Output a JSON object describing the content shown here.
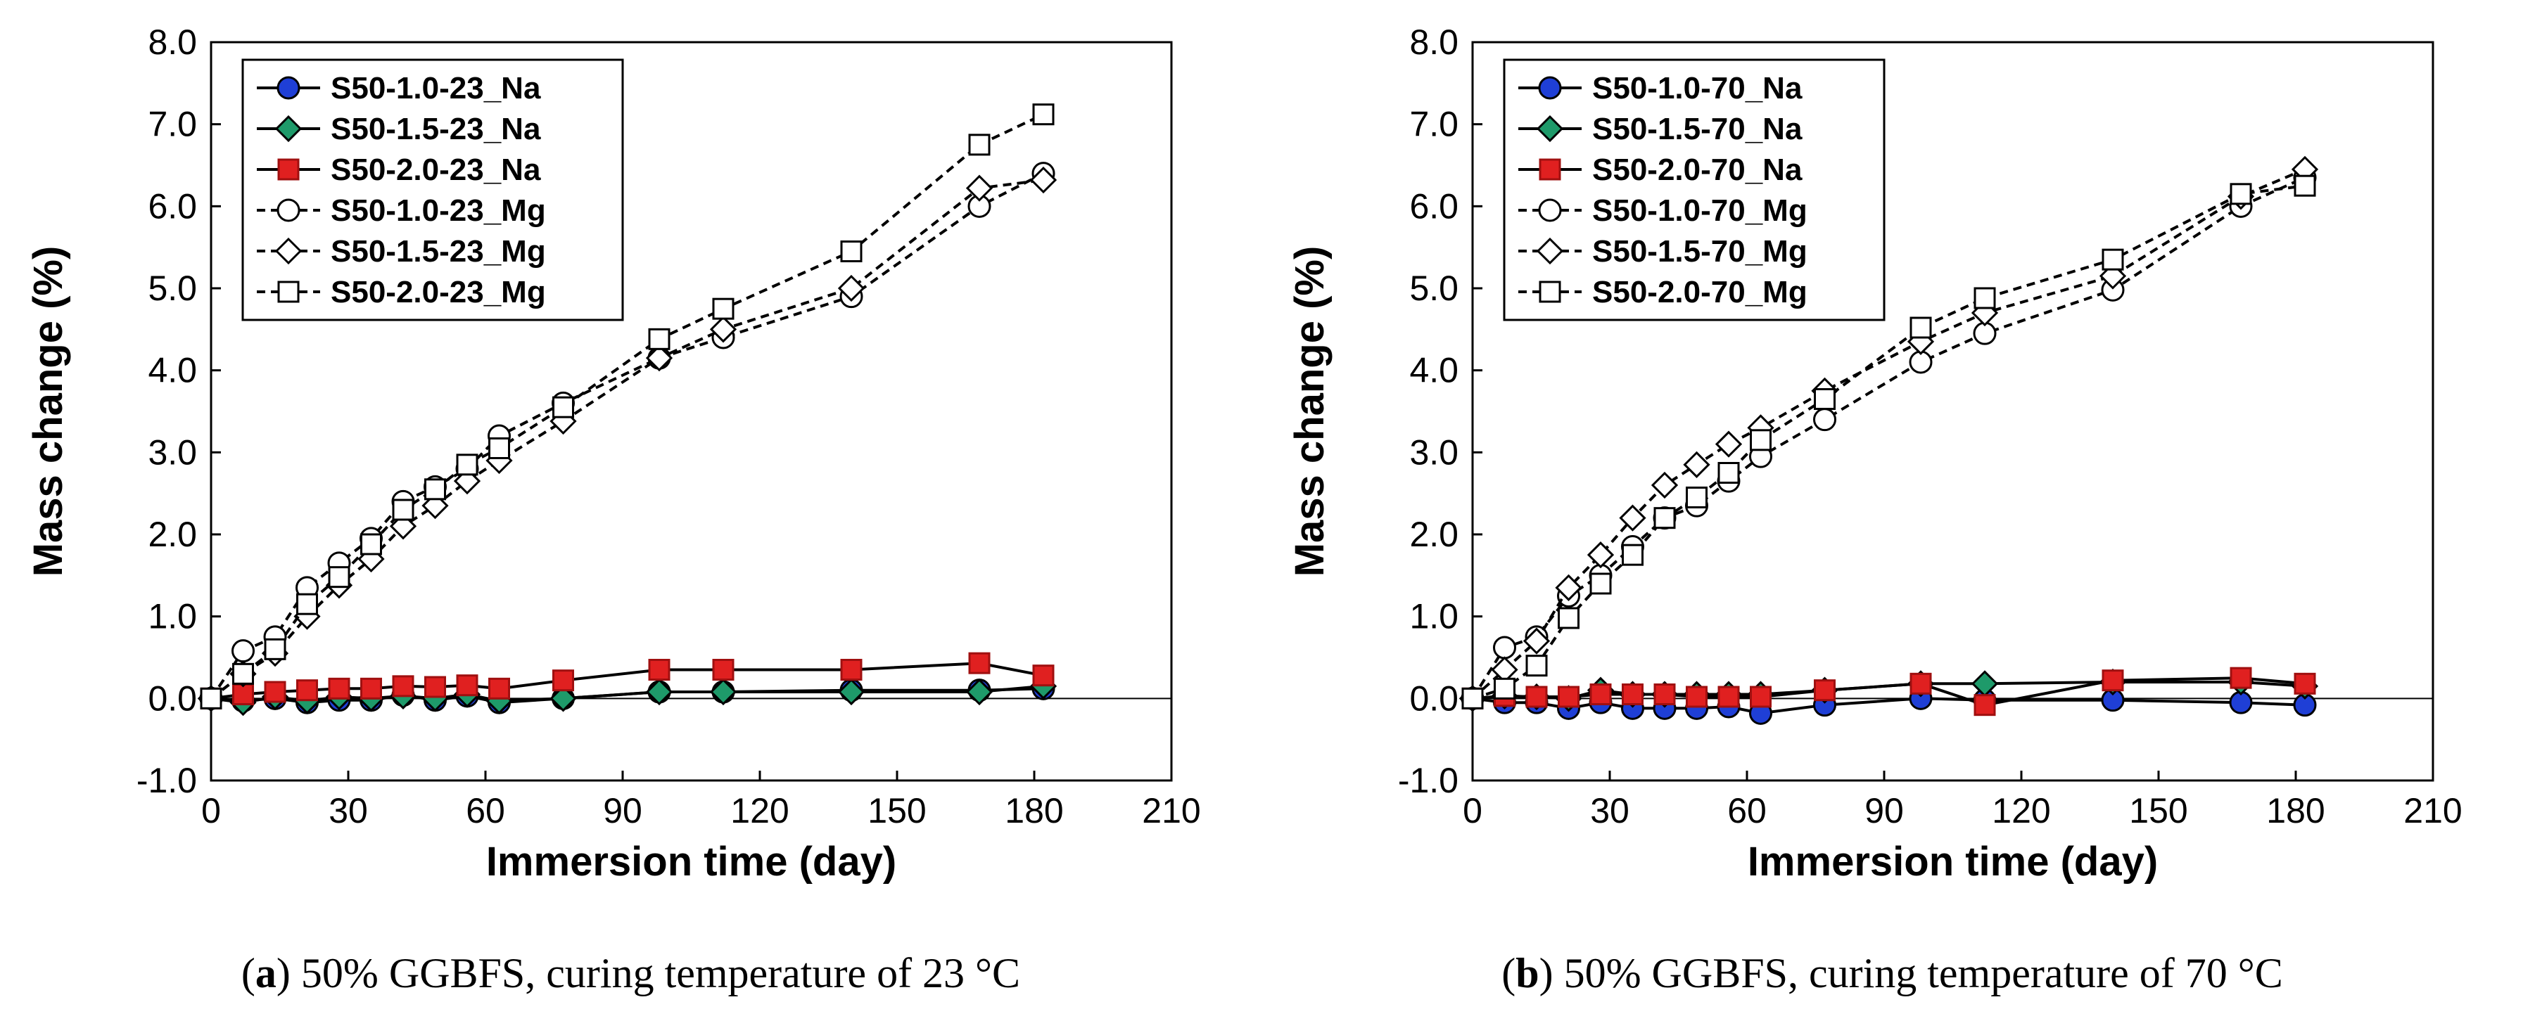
{
  "chart_data": [
    {
      "type": "line",
      "caption_letter": "a",
      "caption_text": "50% GGBFS, curing temperature of 23 °C",
      "xlabel": "Immersion time (day)",
      "ylabel": "Mass change (%)",
      "xlim": [
        0,
        210
      ],
      "ylim": [
        -1.0,
        8.0
      ],
      "xticks": [
        "0",
        "30",
        "60",
        "90",
        "120",
        "150",
        "180",
        "210"
      ],
      "yticks": [
        "-1.0",
        "0.0",
        "1.0",
        "2.0",
        "3.0",
        "4.0",
        "5.0",
        "6.0",
        "7.0",
        "8.0"
      ],
      "x": [
        0,
        7,
        14,
        21,
        28,
        35,
        42,
        49,
        56,
        63,
        77,
        98,
        112,
        140,
        168,
        182
      ],
      "series": [
        {
          "name": "S50-1.0-23_Na",
          "marker": "circle",
          "fill": "#1f3fd6",
          "line": "solid",
          "values": [
            0.0,
            -0.03,
            0.0,
            -0.05,
            -0.02,
            -0.02,
            0.04,
            -0.02,
            0.03,
            -0.05,
            0.0,
            0.08,
            0.08,
            0.1,
            0.1,
            0.12
          ]
        },
        {
          "name": "S50-1.5-23_Na",
          "marker": "diamond",
          "fill": "#1e9a6a",
          "line": "solid",
          "values": [
            0.0,
            -0.05,
            0.02,
            -0.03,
            0.02,
            0.0,
            0.03,
            0.0,
            0.05,
            -0.03,
            0.0,
            0.08,
            0.08,
            0.08,
            0.08,
            0.15
          ]
        },
        {
          "name": "S50-2.0-23_Na",
          "marker": "square",
          "fill": "#e02020",
          "line": "solid",
          "values": [
            0.0,
            0.05,
            0.08,
            0.1,
            0.12,
            0.12,
            0.15,
            0.14,
            0.16,
            0.12,
            0.22,
            0.35,
            0.35,
            0.35,
            0.43,
            0.28
          ]
        },
        {
          "name": "S50-1.0-23_Mg",
          "marker": "circle",
          "fill": "#ffffff",
          "line": "dashed",
          "values": [
            0.0,
            0.58,
            0.75,
            1.35,
            1.65,
            1.95,
            2.4,
            2.58,
            2.8,
            3.2,
            3.6,
            4.15,
            4.4,
            4.9,
            6.0,
            6.4
          ]
        },
        {
          "name": "S50-1.5-23_Mg",
          "marker": "diamond",
          "fill": "#ffffff",
          "line": "dashed",
          "values": [
            0.0,
            0.3,
            0.55,
            1.0,
            1.38,
            1.7,
            2.1,
            2.35,
            2.65,
            2.9,
            3.38,
            4.15,
            4.5,
            5.0,
            6.22,
            6.32
          ]
        },
        {
          "name": "S50-2.0-23_Mg",
          "marker": "square",
          "fill": "#ffffff",
          "line": "dashed",
          "values": [
            0.0,
            0.3,
            0.6,
            1.15,
            1.48,
            1.88,
            2.3,
            2.55,
            2.85,
            3.05,
            3.55,
            4.38,
            4.75,
            5.45,
            6.75,
            7.12
          ]
        }
      ]
    },
    {
      "type": "line",
      "caption_letter": "b",
      "caption_text": "50% GGBFS, curing temperature of 70 °C",
      "xlabel": "Immersion time (day)",
      "ylabel": "Mass change (%)",
      "xlim": [
        0,
        210
      ],
      "ylim": [
        -1.0,
        8.0
      ],
      "xticks": [
        "0",
        "30",
        "60",
        "90",
        "120",
        "150",
        "180",
        "210"
      ],
      "yticks": [
        "-1.0",
        "0.0",
        "1.0",
        "2.0",
        "3.0",
        "4.0",
        "5.0",
        "6.0",
        "7.0",
        "8.0"
      ],
      "x": [
        0,
        7,
        14,
        21,
        28,
        35,
        42,
        49,
        56,
        63,
        77,
        98,
        112,
        140,
        168,
        182
      ],
      "series": [
        {
          "name": "S50-1.0-70_Na",
          "marker": "circle",
          "fill": "#1f3fd6",
          "line": "solid",
          "values": [
            0.0,
            -0.05,
            -0.05,
            -0.12,
            -0.05,
            -0.12,
            -0.12,
            -0.12,
            -0.1,
            -0.18,
            -0.08,
            0.0,
            -0.02,
            -0.02,
            -0.05,
            -0.08
          ]
        },
        {
          "name": "S50-1.5-70_Na",
          "marker": "diamond",
          "fill": "#1e9a6a",
          "line": "solid",
          "values": [
            0.0,
            0.03,
            0.02,
            0.0,
            0.1,
            0.05,
            0.05,
            0.05,
            0.05,
            0.05,
            0.1,
            0.18,
            0.18,
            0.2,
            0.2,
            0.15
          ]
        },
        {
          "name": "S50-2.0-70_Na",
          "marker": "square",
          "fill": "#e02020",
          "line": "solid",
          "values": [
            0.0,
            0.03,
            0.02,
            0.02,
            0.05,
            0.05,
            0.05,
            0.02,
            0.02,
            0.02,
            0.1,
            0.18,
            -0.08,
            0.22,
            0.25,
            0.18
          ]
        },
        {
          "name": "S50-1.0-70_Mg",
          "marker": "circle",
          "fill": "#ffffff",
          "line": "dashed",
          "values": [
            0.0,
            0.62,
            0.75,
            1.25,
            1.5,
            1.85,
            2.2,
            2.35,
            2.65,
            2.95,
            3.4,
            4.1,
            4.45,
            4.98,
            6.0,
            6.35
          ]
        },
        {
          "name": "S50-1.5-70_Mg",
          "marker": "diamond",
          "fill": "#ffffff",
          "line": "dashed",
          "values": [
            0.0,
            0.35,
            0.7,
            1.35,
            1.75,
            2.2,
            2.6,
            2.85,
            3.1,
            3.3,
            3.75,
            4.35,
            4.7,
            5.15,
            6.12,
            6.45
          ]
        },
        {
          "name": "S50-2.0-70_Mg",
          "marker": "square",
          "fill": "#ffffff",
          "line": "dashed",
          "values": [
            0.0,
            0.12,
            0.4,
            0.98,
            1.4,
            1.75,
            2.2,
            2.45,
            2.75,
            3.15,
            3.65,
            4.52,
            4.88,
            5.35,
            6.15,
            6.25
          ]
        }
      ]
    }
  ]
}
